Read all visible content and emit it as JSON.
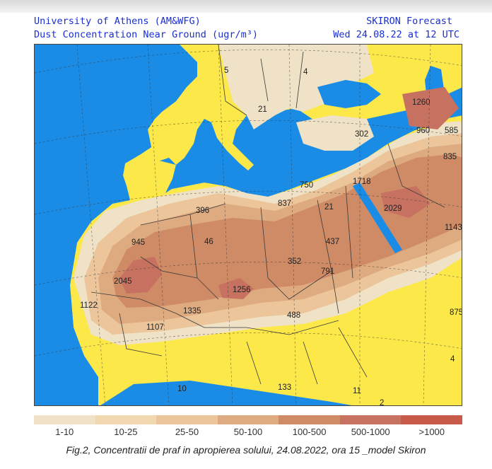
{
  "header": {
    "institution": "University of Athens (AM&WFG)",
    "product": "Dust Concentration Near Ground (ugr/m³)",
    "model": "SKIRON Forecast",
    "valid_time": "Wed 24.08.22 at 12 UTC"
  },
  "colors": {
    "sea": "#1b8ce6",
    "low": "#efe2c6",
    "yellow": "#fde84a",
    "c25": "#ecc69a",
    "c50": "#deaa80",
    "c100": "#cf8b66",
    "c500": "#c77260",
    "c1000": "#c85a4a"
  },
  "map_labels": [
    "5",
    "4",
    "21",
    "1260",
    "302",
    "960",
    "585",
    "835",
    "750",
    "1718",
    "396",
    "837",
    "21",
    "2029",
    "1143",
    "945",
    "46",
    "437",
    "352",
    "791",
    "2045",
    "1256",
    "1122",
    "1335",
    "488",
    "875",
    "1107",
    "4",
    "10",
    "133",
    "11",
    "2"
  ],
  "legend": [
    {
      "label": "1-10",
      "color": "#efe2c6"
    },
    {
      "label": "10-25",
      "color": "#f1d8b0"
    },
    {
      "label": "25-50",
      "color": "#ecc69a"
    },
    {
      "label": "50-100",
      "color": "#deaa80"
    },
    {
      "label": "100-500",
      "color": "#cf8b66"
    },
    {
      "label": "500-1000",
      "color": "#c77260"
    },
    {
      "label": ">1000",
      "color": "#c85a4a"
    }
  ],
  "caption": "Fig.2, Concentratii de praf in apropierea solului, 24.08.2022, ora 15 _model Skiron"
}
